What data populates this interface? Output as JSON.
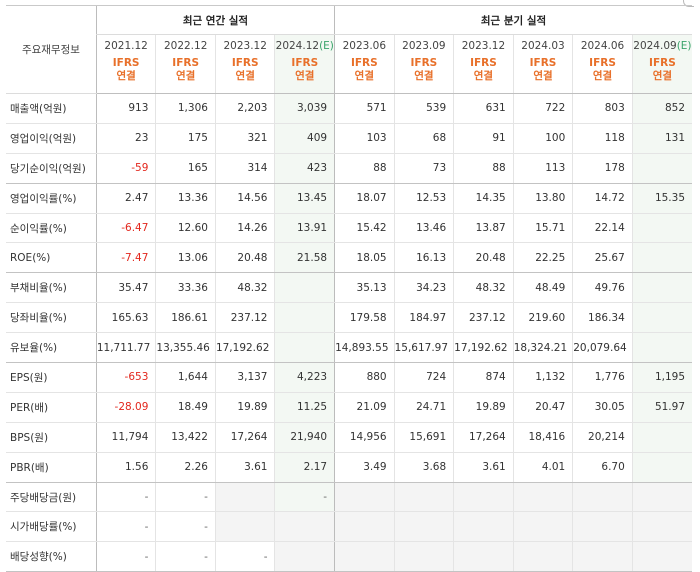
{
  "header": {
    "row_label": "주요재무정보",
    "annual_group": "최근 연간 실적",
    "quarter_group": "최근 분기 실적",
    "est_mark": "(E)",
    "ifrs_line1": "IFRS",
    "ifrs_line2": "연결"
  },
  "periods": [
    {
      "label": "2021.12",
      "est": false
    },
    {
      "label": "2022.12",
      "est": false
    },
    {
      "label": "2023.12",
      "est": false
    },
    {
      "label": "2024.12",
      "est": true
    },
    {
      "label": "2023.06",
      "est": false
    },
    {
      "label": "2023.09",
      "est": false
    },
    {
      "label": "2023.12",
      "est": false
    },
    {
      "label": "2024.03",
      "est": false
    },
    {
      "label": "2024.06",
      "est": false
    },
    {
      "label": "2024.09",
      "est": true
    }
  ],
  "rows": [
    {
      "label": "매출액(억원)",
      "values": [
        "913",
        "1,306",
        "2,203",
        "3,039",
        "571",
        "539",
        "631",
        "722",
        "803",
        "852"
      ]
    },
    {
      "label": "영업이익(억원)",
      "values": [
        "23",
        "175",
        "321",
        "409",
        "103",
        "68",
        "91",
        "100",
        "118",
        "131"
      ]
    },
    {
      "label": "당기순이익(억원)",
      "values": [
        "-59",
        "165",
        "314",
        "423",
        "88",
        "73",
        "88",
        "113",
        "178",
        ""
      ]
    },
    {
      "label": "영업이익률(%)",
      "values": [
        "2.47",
        "13.36",
        "14.56",
        "13.45",
        "18.07",
        "12.53",
        "14.35",
        "13.80",
        "14.72",
        "15.35"
      ]
    },
    {
      "label": "순이익률(%)",
      "values": [
        "-6.47",
        "12.60",
        "14.26",
        "13.91",
        "15.42",
        "13.46",
        "13.87",
        "15.71",
        "22.14",
        ""
      ]
    },
    {
      "label": "ROE(%)",
      "values": [
        "-7.47",
        "13.06",
        "20.48",
        "21.58",
        "18.05",
        "16.13",
        "20.48",
        "22.25",
        "25.67",
        ""
      ]
    },
    {
      "label": "부채비율(%)",
      "values": [
        "35.47",
        "33.36",
        "48.32",
        "",
        "35.13",
        "34.23",
        "48.32",
        "48.49",
        "49.76",
        ""
      ]
    },
    {
      "label": "당좌비율(%)",
      "values": [
        "165.63",
        "186.61",
        "237.12",
        "",
        "179.58",
        "184.97",
        "237.12",
        "219.60",
        "186.34",
        ""
      ]
    },
    {
      "label": "유보율(%)",
      "values": [
        "11,711.77",
        "13,355.46",
        "17,192.62",
        "",
        "14,893.55",
        "15,617.97",
        "17,192.62",
        "18,324.21",
        "20,079.64",
        ""
      ]
    },
    {
      "label": "EPS(원)",
      "values": [
        "-653",
        "1,644",
        "3,137",
        "4,223",
        "880",
        "724",
        "874",
        "1,132",
        "1,776",
        "1,195"
      ]
    },
    {
      "label": "PER(배)",
      "values": [
        "-28.09",
        "18.49",
        "19.89",
        "11.25",
        "21.09",
        "24.71",
        "19.89",
        "20.47",
        "30.05",
        "51.97"
      ]
    },
    {
      "label": "BPS(원)",
      "values": [
        "11,794",
        "13,422",
        "17,264",
        "21,940",
        "14,956",
        "15,691",
        "17,264",
        "18,416",
        "20,214",
        ""
      ]
    },
    {
      "label": "PBR(배)",
      "values": [
        "1.56",
        "2.26",
        "3.61",
        "2.17",
        "3.49",
        "3.68",
        "3.61",
        "4.01",
        "6.70",
        ""
      ]
    },
    {
      "label": "주당배당금(원)",
      "values": [
        "-",
        "-",
        "",
        "-",
        "",
        "",
        "",
        "",
        "",
        ""
      ]
    },
    {
      "label": "시가배당률(%)",
      "values": [
        "-",
        "-",
        "",
        "",
        "",
        "",
        "",
        "",
        "",
        ""
      ]
    },
    {
      "label": "배당성향(%)",
      "values": [
        "-",
        "-",
        "-",
        "",
        "",
        "",
        "",
        "",
        "",
        ""
      ]
    }
  ]
}
